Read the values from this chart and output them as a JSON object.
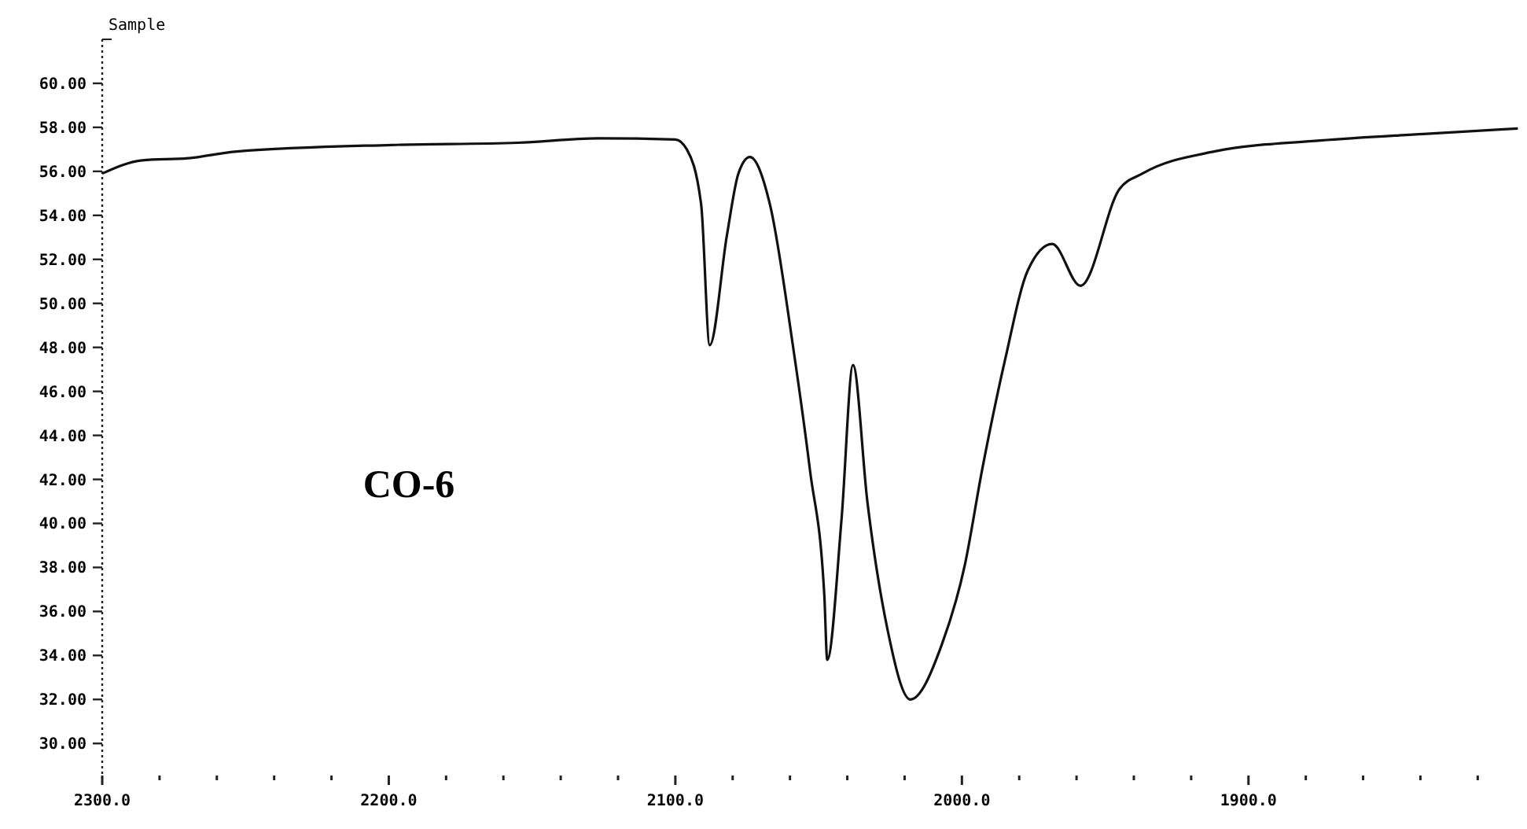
{
  "chart_data": {
    "type": "line",
    "ylabel": "Sample",
    "annotations": [
      "CO-6"
    ],
    "xlim": [
      2300,
      1805
    ],
    "ylim": [
      28.4,
      62
    ],
    "xticks": [
      {
        "value": 2300,
        "label": "2300.0"
      },
      {
        "value": 2280,
        "label": null
      },
      {
        "value": 2260,
        "label": null
      },
      {
        "value": 2240,
        "label": null
      },
      {
        "value": 2220,
        "label": null
      },
      {
        "value": 2200,
        "label": "2200.0"
      },
      {
        "value": 2180,
        "label": null
      },
      {
        "value": 2160,
        "label": null
      },
      {
        "value": 2140,
        "label": null
      },
      {
        "value": 2120,
        "label": null
      },
      {
        "value": 2100,
        "label": "2100.0"
      },
      {
        "value": 2080,
        "label": null
      },
      {
        "value": 2060,
        "label": null
      },
      {
        "value": 2040,
        "label": null
      },
      {
        "value": 2020,
        "label": null
      },
      {
        "value": 2000,
        "label": "2000.0"
      },
      {
        "value": 1980,
        "label": null
      },
      {
        "value": 1960,
        "label": null
      },
      {
        "value": 1940,
        "label": null
      },
      {
        "value": 1920,
        "label": null
      },
      {
        "value": 1900,
        "label": "1900.0"
      },
      {
        "value": 1880,
        "label": null
      },
      {
        "value": 1860,
        "label": null
      },
      {
        "value": 1840,
        "label": null
      },
      {
        "value": 1820,
        "label": null
      }
    ],
    "yticks": [
      {
        "value": 30,
        "label": "30.00"
      },
      {
        "value": 32,
        "label": "32.00"
      },
      {
        "value": 34,
        "label": "34.00"
      },
      {
        "value": 36,
        "label": "36.00"
      },
      {
        "value": 38,
        "label": "38.00"
      },
      {
        "value": 40,
        "label": "40.00"
      },
      {
        "value": 42,
        "label": "42.00"
      },
      {
        "value": 44,
        "label": "44.00"
      },
      {
        "value": 46,
        "label": "46.00"
      },
      {
        "value": 48,
        "label": "48.00"
      },
      {
        "value": 50,
        "label": "50.00"
      },
      {
        "value": 52,
        "label": "52.00"
      },
      {
        "value": 54,
        "label": "54.00"
      },
      {
        "value": 56,
        "label": "56.00"
      },
      {
        "value": 58,
        "label": "58.00"
      },
      {
        "value": 60,
        "label": "60.00"
      }
    ],
    "grid": false,
    "marker": "none",
    "line_style": "solid",
    "series": [
      {
        "color": "#111111",
        "x": [
          2300,
          2286,
          2270,
          2253,
          2199,
          2155,
          2127,
          2100,
          2096,
          2091,
          2088,
          2082,
          2078,
          2074,
          2067,
          2059,
          2053,
          2048,
          2047,
          2042,
          2038,
          2033,
          2026,
          2018,
          2007,
          1999,
          1993,
          1985,
          1977,
          1968.5,
          1958.6,
          1945,
          1937,
          1912,
          1875,
          1839,
          1806
        ],
        "values": [
          55.9,
          56.5,
          56.6,
          56.9,
          57.2,
          57.3,
          57.5,
          57.45,
          57.0,
          54.5,
          48.1,
          53.1,
          55.9,
          56.65,
          54.5,
          48.1,
          42.4,
          36.7,
          33.8,
          40.2,
          47.2,
          41.0,
          35.2,
          32.0,
          34.5,
          38.1,
          42.4,
          47.4,
          51.5,
          52.7,
          50.8,
          55.2,
          55.9,
          56.9,
          57.4,
          57.7,
          57.95
        ]
      }
    ]
  }
}
